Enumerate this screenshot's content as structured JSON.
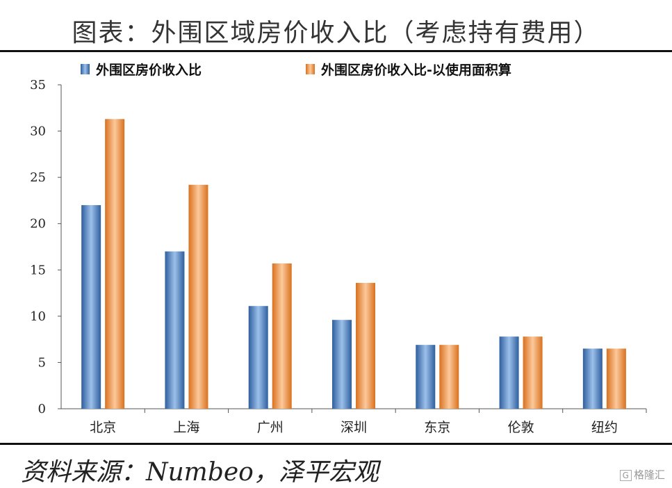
{
  "title": "图表：外围区域房价收入比（考虑持有费用）",
  "source": "资料来源：Numbeo，泽平宏观",
  "watermark": "格隆汇",
  "chart_data": {
    "type": "bar",
    "categories": [
      "北京",
      "上海",
      "广州",
      "深圳",
      "东京",
      "伦敦",
      "纽约"
    ],
    "series": [
      {
        "name": "外围区房价收入比",
        "values": [
          22.0,
          17.0,
          11.1,
          9.6,
          6.9,
          7.8,
          6.5
        ],
        "color": "#4f81bd"
      },
      {
        "name": "外围区房价收入比-以使用面积算",
        "values": [
          31.3,
          24.2,
          15.7,
          13.6,
          6.9,
          7.8,
          6.5
        ],
        "color": "#f79646"
      }
    ],
    "ylim": [
      0,
      35
    ],
    "yticks": [
      0,
      5,
      10,
      15,
      20,
      25,
      30,
      35
    ],
    "legend_position": "top",
    "grid": false
  }
}
